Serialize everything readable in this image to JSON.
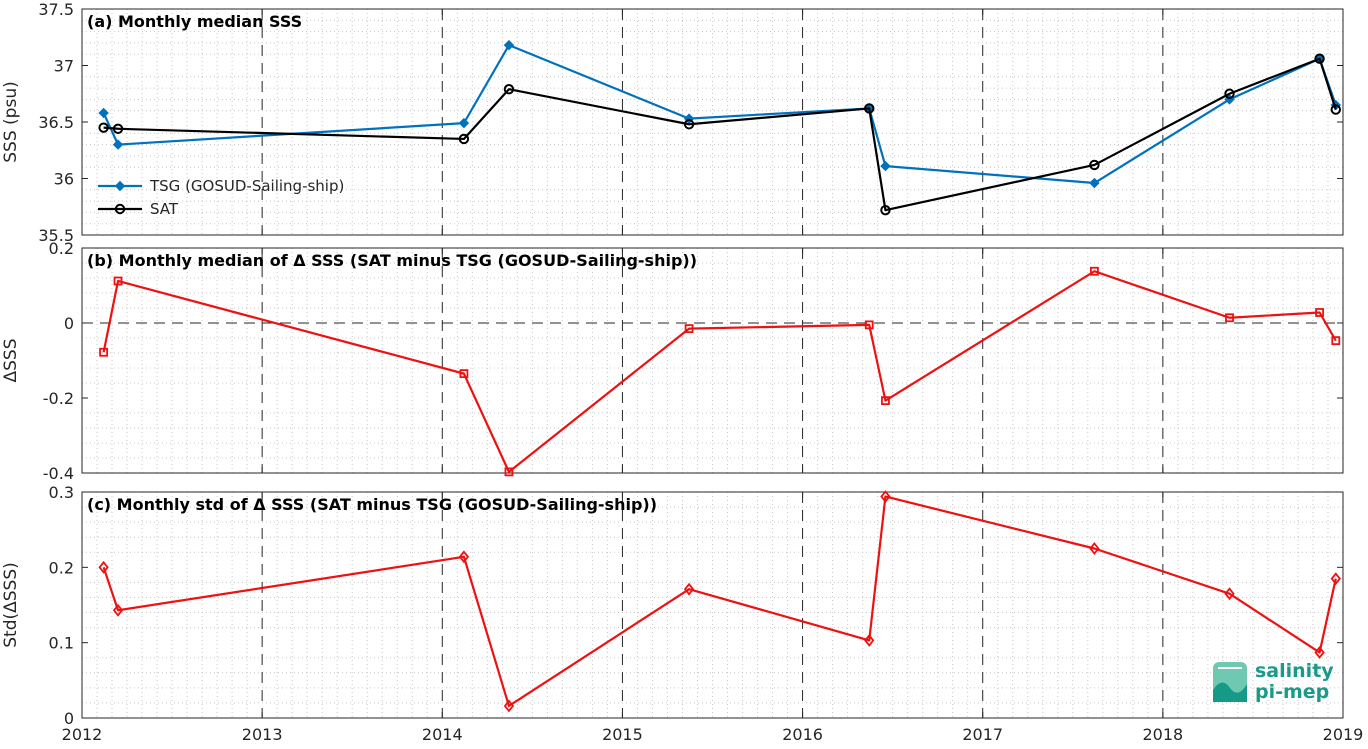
{
  "x_axis": {
    "min": 2012,
    "max": 2019,
    "ticks": [
      "2012",
      "2013",
      "2014",
      "2015",
      "2016",
      "2017",
      "2018",
      "2019"
    ]
  },
  "logo": {
    "line1": "salinity",
    "line2": "pi-mep"
  },
  "colors": {
    "tsg": "#0072bd",
    "sat": "#000000",
    "delta": "#ee1111",
    "grid_major": "#262626",
    "grid_minor": "#c8c8c8"
  },
  "chart_data": [
    {
      "type": "line",
      "title": "(a) Monthly median SSS",
      "ylabel": "SSS (psu)",
      "ylim": [
        35.5,
        37.5
      ],
      "yticks": [
        "35.5",
        "36",
        "36.5",
        "37",
        "37.5"
      ],
      "legend_position": "lower-left",
      "series": [
        {
          "name": "TSG (GOSUD-Sailing-ship)",
          "marker": "dot",
          "x": [
            2012.12,
            2012.2,
            2014.12,
            2014.37,
            2015.37,
            2016.37,
            2016.46,
            2017.62,
            2018.37,
            2018.87,
            2018.96
          ],
          "values": [
            36.58,
            36.3,
            36.49,
            37.18,
            36.53,
            36.62,
            36.11,
            35.96,
            36.7,
            37.06,
            36.65
          ]
        },
        {
          "name": "SAT",
          "marker": "circle",
          "x": [
            2012.12,
            2012.2,
            2014.12,
            2014.37,
            2015.37,
            2016.37,
            2016.46,
            2017.62,
            2018.37,
            2018.87,
            2018.96
          ],
          "values": [
            36.45,
            36.44,
            36.35,
            36.79,
            36.48,
            36.62,
            35.72,
            36.12,
            36.75,
            37.06,
            36.61
          ]
        }
      ]
    },
    {
      "type": "line",
      "title": "(b) Monthly median of Δ SSS (SAT minus TSG (GOSUD-Sailing-ship))",
      "ylabel": "ΔSSS",
      "ylim": [
        -0.4,
        0.2
      ],
      "yticks": [
        "-0.4",
        "-0.2",
        "0",
        "0.2"
      ],
      "series": [
        {
          "marker": "square",
          "x": [
            2012.12,
            2012.2,
            2014.12,
            2014.37,
            2015.37,
            2016.37,
            2016.46,
            2017.62,
            2018.37,
            2018.87,
            2018.96
          ],
          "values": [
            -0.078,
            0.112,
            -0.135,
            -0.397,
            -0.015,
            -0.005,
            -0.207,
            0.138,
            0.014,
            0.028,
            -0.047
          ]
        }
      ]
    },
    {
      "type": "line",
      "title": "(c) Monthly std of Δ SSS (SAT minus TSG (GOSUD-Sailing-ship))",
      "ylabel": "Std(ΔSSS)",
      "ylim": [
        0,
        0.3
      ],
      "yticks": [
        "0",
        "0.1",
        "0.2",
        "0.3"
      ],
      "series": [
        {
          "marker": "diamond",
          "x": [
            2012.12,
            2012.2,
            2014.12,
            2014.37,
            2015.37,
            2016.37,
            2016.46,
            2017.62,
            2018.37,
            2018.87,
            2018.96
          ],
          "values": [
            0.2,
            0.143,
            0.214,
            0.016,
            0.171,
            0.103,
            0.294,
            0.225,
            0.165,
            0.087,
            0.185
          ]
        }
      ]
    }
  ]
}
